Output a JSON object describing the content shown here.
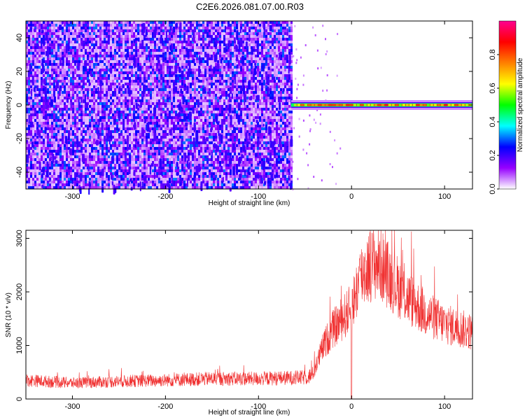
{
  "title": "C2E6.2026.081.07.00.R03",
  "chart_data": [
    {
      "type": "heatmap",
      "title": "",
      "xlabel": "Height of straight line (km)",
      "ylabel": "Frequency (Hz)",
      "xlim": [
        -350,
        130
      ],
      "ylim": [
        -50,
        50
      ],
      "x_ticks": [
        -300,
        -200,
        -100,
        0,
        100
      ],
      "x_tick_labels": [
        "-300",
        "-200",
        "-100",
        "0",
        "100"
      ],
      "y_ticks": [
        -40,
        -20,
        0,
        20,
        40
      ],
      "y_tick_labels": [
        "-40",
        "-20",
        "0",
        "20",
        "40"
      ],
      "colorbar": {
        "label": "Normalized spectral amplitude",
        "range": [
          0.0,
          1.0
        ],
        "ticks": [
          0.0,
          0.2,
          0.4,
          0.6,
          0.8
        ],
        "tick_labels": [
          "0.0",
          "0.2",
          "0.4",
          "0.6",
          "0.8"
        ],
        "colormap": [
          "#ffffff",
          "#9600ff",
          "#0000ff",
          "#00ffff",
          "#00ff00",
          "#ffff00",
          "#ff8000",
          "#ff0000",
          "#ff0090"
        ]
      },
      "features": {
        "noise_region_x": [
          -350,
          -65
        ],
        "noise_amplitude": [
          0.05,
          0.25
        ],
        "line_region_x": [
          -65,
          130
        ],
        "line_frequency_hz": 0,
        "line_peak_amplitude": 0.85
      }
    },
    {
      "type": "line",
      "title": "",
      "xlabel": "Height of straight line (km)",
      "ylabel": "SNR (10 * v/v)",
      "xlim": [
        -350,
        130
      ],
      "ylim": [
        0,
        3150
      ],
      "x_ticks": [
        -300,
        -200,
        -100,
        0,
        100
      ],
      "x_tick_labels": [
        "-300",
        "-200",
        "-100",
        "0",
        "100"
      ],
      "y_ticks": [
        0,
        1000,
        2000,
        3000
      ],
      "y_tick_labels": [
        "0",
        "1000",
        "2000",
        "3000"
      ],
      "line_color": "#f03030",
      "envelope": {
        "x": [
          -350,
          -300,
          -250,
          -200,
          -150,
          -100,
          -50,
          -42,
          -30,
          -20,
          -10,
          0,
          10,
          20,
          30,
          40,
          60,
          80,
          100,
          130
        ],
        "y": [
          350,
          300,
          330,
          350,
          380,
          380,
          400,
          450,
          1000,
          1300,
          1500,
          1700,
          2300,
          2500,
          2550,
          2300,
          1900,
          1600,
          1400,
          1250
        ]
      }
    }
  ]
}
